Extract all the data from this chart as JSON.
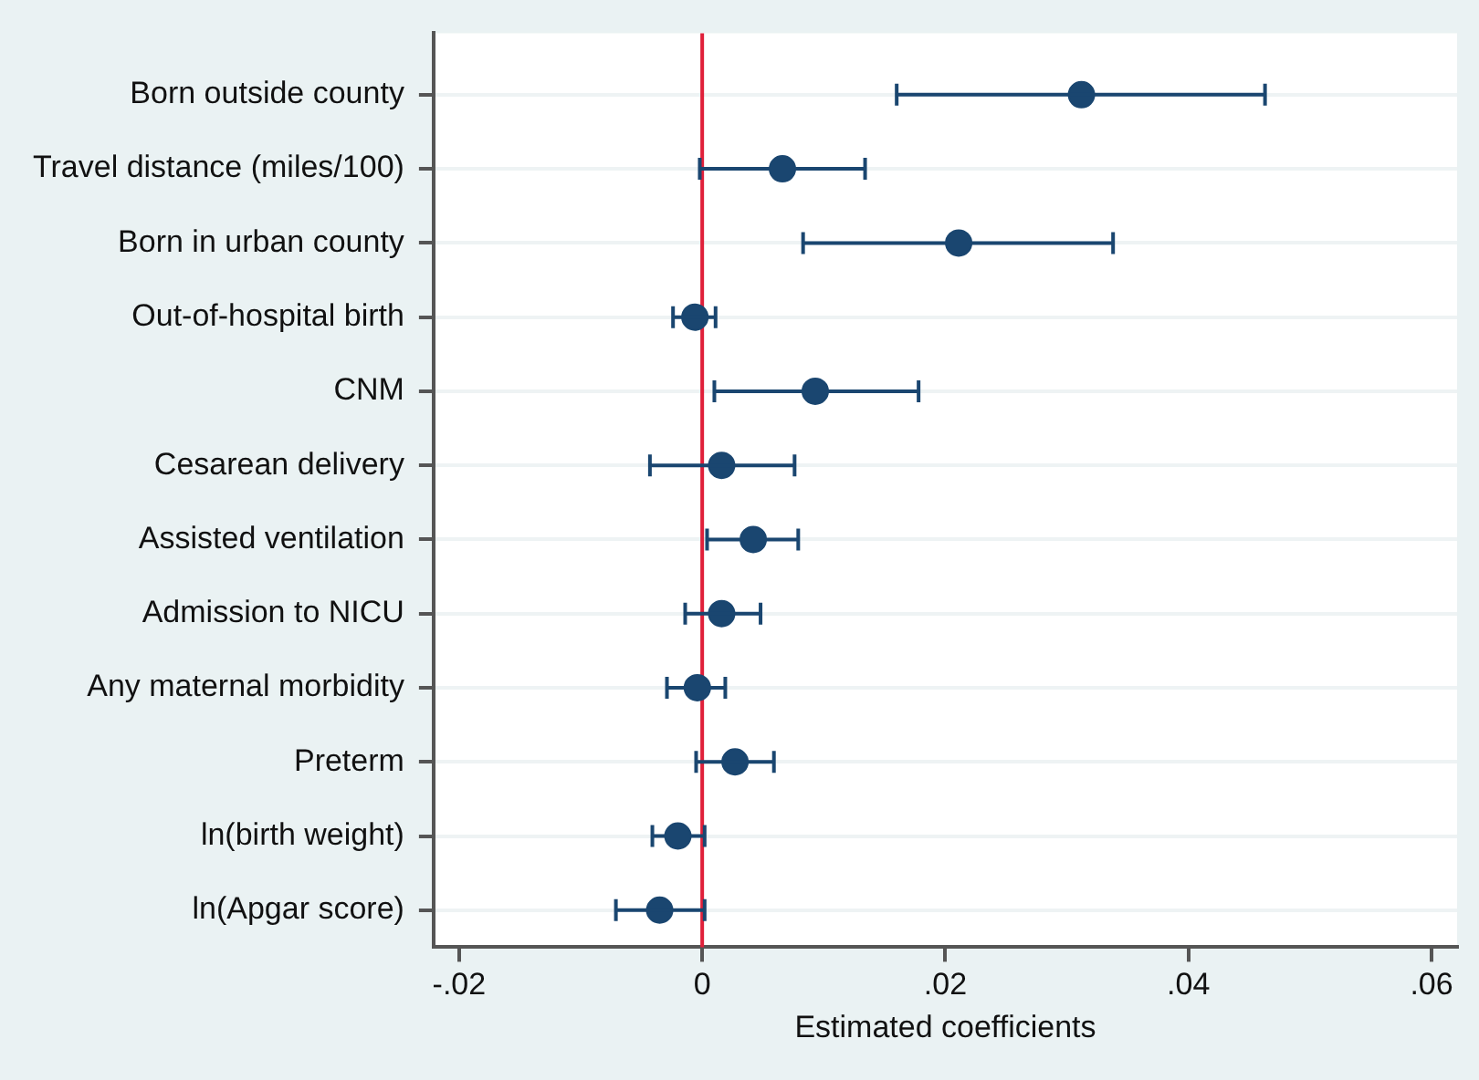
{
  "chart_data": {
    "type": "scatter",
    "orientation": "horizontal",
    "categories": [
      "Born outside county",
      "Travel distance (miles/100)",
      "Born in urban county",
      "Out-of-hospital birth",
      "CNM",
      "Cesarean delivery",
      "Assisted ventilation",
      "Admission to NICU",
      "Any maternal morbidity",
      "Preterm",
      "ln(birth weight)",
      "ln(Apgar score)"
    ],
    "values": [
      0.0312,
      0.0066,
      0.0211,
      -0.0006,
      0.0093,
      0.0016,
      0.0042,
      0.0016,
      -0.0004,
      0.0027,
      -0.002,
      -0.0035
    ],
    "errors": [
      [
        0.016,
        0.0463
      ],
      [
        -0.0002,
        0.0134
      ],
      [
        0.0083,
        0.0338
      ],
      [
        -0.0024,
        0.0011
      ],
      [
        0.001,
        0.0178
      ],
      [
        -0.0043,
        0.0076
      ],
      [
        0.0004,
        0.0079
      ],
      [
        -0.0014,
        0.0048
      ],
      [
        -0.0029,
        0.0019
      ],
      [
        -0.0005,
        0.0059
      ],
      [
        -0.0041,
        0.0002
      ],
      [
        -0.0071,
        0.0002
      ]
    ],
    "color": "#1a4670",
    "marker": "circle",
    "xlim": [
      -0.0221,
      0.0621
    ],
    "xticks": [
      {
        "value": -0.02,
        "label": "-.02"
      },
      0,
      {
        "value": 0.02,
        "label": ".02"
      },
      {
        "value": 0.04,
        "label": ".04"
      },
      {
        "value": 0.06,
        "label": ".06"
      }
    ],
    "xlabel": "Estimated coefficients",
    "grid": "y",
    "ref_lines": [
      {
        "axis": "x",
        "value": 0,
        "color": "#e0203a"
      }
    ]
  }
}
